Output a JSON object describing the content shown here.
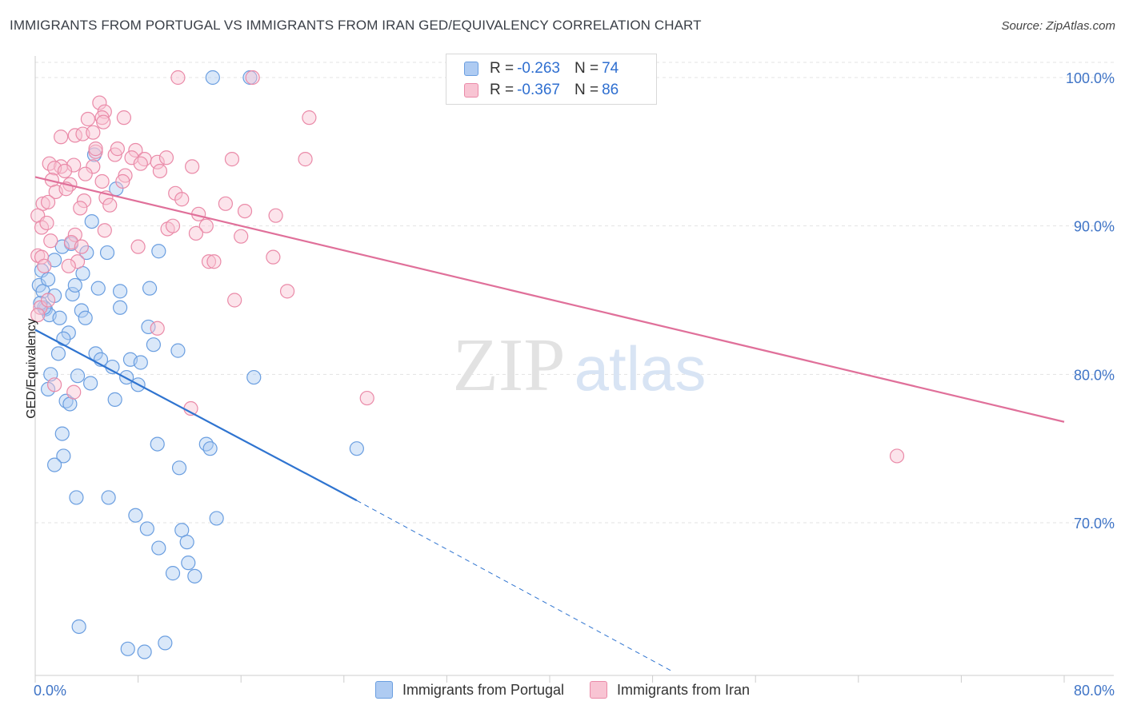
{
  "title": "IMMIGRANTS FROM PORTUGAL VS IMMIGRANTS FROM IRAN GED/EQUIVALENCY CORRELATION CHART",
  "source": "Source: ZipAtlas.com",
  "watermark": {
    "zip": "ZIP",
    "atlas": "atlas"
  },
  "stats": [
    {
      "r_label": "R =",
      "r_value": "-0.263",
      "n_label": "N =",
      "n_value": "74",
      "color": "#aecbf2",
      "border": "#6a9ee0"
    },
    {
      "r_label": "R =",
      "r_value": "-0.367",
      "n_label": "N =",
      "n_value": "86",
      "color": "#f8c4d3",
      "border": "#ea8aa8"
    }
  ],
  "legend": [
    {
      "label": "Immigrants from Portugal",
      "color": "#aecbf2",
      "border": "#6a9ee0"
    },
    {
      "label": "Immigrants from Iran",
      "color": "#f8c4d3",
      "border": "#ea8aa8"
    }
  ],
  "chart_data": {
    "type": "scatter",
    "xlabel": "",
    "ylabel": "GED/Equivalency",
    "xlim": [
      0,
      80
    ],
    "ylim": [
      60,
      101.5
    ],
    "x_tick_labels": [
      {
        "value": 0,
        "label": "0.0%"
      },
      {
        "value": 80,
        "label": "80.0%"
      }
    ],
    "y_tick_labels": [
      {
        "value": 100,
        "label": "100.0%"
      },
      {
        "value": 90,
        "label": "90.0%"
      },
      {
        "value": 80,
        "label": "80.0%"
      },
      {
        "value": 70,
        "label": "70.0%"
      }
    ],
    "grid": true,
    "series": [
      {
        "name": "Immigrants from Portugal",
        "color": "#6a9ee0",
        "fill": "rgba(174,203,242,0.45)",
        "trend_color": "#2f74d0",
        "trend": {
          "x0": 0,
          "y0": 83.0,
          "x1": 25.0,
          "y1": 71.5,
          "dash_to_x": 49.5,
          "dash_to_y": 60.0
        },
        "points": [
          [
            13.8,
            100.0
          ],
          [
            16.7,
            100.0
          ],
          [
            4.6,
            94.8
          ],
          [
            6.3,
            92.5
          ],
          [
            4.4,
            90.3
          ],
          [
            2.8,
            88.8
          ],
          [
            1.5,
            87.7
          ],
          [
            4.0,
            88.2
          ],
          [
            5.6,
            88.2
          ],
          [
            9.6,
            88.3
          ],
          [
            0.5,
            87.0
          ],
          [
            3.7,
            86.8
          ],
          [
            0.3,
            86.0
          ],
          [
            0.6,
            85.6
          ],
          [
            2.9,
            85.4
          ],
          [
            4.9,
            85.8
          ],
          [
            6.6,
            85.6
          ],
          [
            8.9,
            85.8
          ],
          [
            1.5,
            85.3
          ],
          [
            0.8,
            84.4
          ],
          [
            1.1,
            84.0
          ],
          [
            0.7,
            84.5
          ],
          [
            1.9,
            83.8
          ],
          [
            3.6,
            84.3
          ],
          [
            3.9,
            83.8
          ],
          [
            6.6,
            84.5
          ],
          [
            8.8,
            83.2
          ],
          [
            2.6,
            82.8
          ],
          [
            2.2,
            82.4
          ],
          [
            1.8,
            81.4
          ],
          [
            4.7,
            81.4
          ],
          [
            5.1,
            81.0
          ],
          [
            7.4,
            81.0
          ],
          [
            8.2,
            80.8
          ],
          [
            11.1,
            81.6
          ],
          [
            1.2,
            80.0
          ],
          [
            7.1,
            79.8
          ],
          [
            8.0,
            79.3
          ],
          [
            17.0,
            79.8
          ],
          [
            1.0,
            79.0
          ],
          [
            4.3,
            79.4
          ],
          [
            2.4,
            78.2
          ],
          [
            2.7,
            78.0
          ],
          [
            6.2,
            78.3
          ],
          [
            2.1,
            76.0
          ],
          [
            9.5,
            75.3
          ],
          [
            13.3,
            75.3
          ],
          [
            13.6,
            75.0
          ],
          [
            25.0,
            75.0
          ],
          [
            2.2,
            74.5
          ],
          [
            1.5,
            73.9
          ],
          [
            11.2,
            73.7
          ],
          [
            3.2,
            71.7
          ],
          [
            5.7,
            71.7
          ],
          [
            7.8,
            70.5
          ],
          [
            14.1,
            70.3
          ],
          [
            8.7,
            69.6
          ],
          [
            11.4,
            69.5
          ],
          [
            11.8,
            68.7
          ],
          [
            9.6,
            68.3
          ],
          [
            11.9,
            67.3
          ],
          [
            10.7,
            66.6
          ],
          [
            12.4,
            66.4
          ],
          [
            3.4,
            63.0
          ],
          [
            10.1,
            61.9
          ],
          [
            7.2,
            61.5
          ],
          [
            8.5,
            61.3
          ],
          [
            1.0,
            86.4
          ],
          [
            0.4,
            84.8
          ],
          [
            3.1,
            86.0
          ],
          [
            2.1,
            88.6
          ],
          [
            6.0,
            80.5
          ],
          [
            9.2,
            82.0
          ],
          [
            3.3,
            79.9
          ]
        ]
      },
      {
        "name": "Immigrants from Iran",
        "color": "#ea8aa8",
        "fill": "rgba(248,196,211,0.45)",
        "trend_color": "#e0709a",
        "trend": {
          "x0": 0,
          "y0": 93.3,
          "x1": 80,
          "y1": 76.8
        },
        "points": [
          [
            11.1,
            100.0
          ],
          [
            16.9,
            100.0
          ],
          [
            5.0,
            98.3
          ],
          [
            5.4,
            97.7
          ],
          [
            4.1,
            97.2
          ],
          [
            5.2,
            97.3
          ],
          [
            6.9,
            97.3
          ],
          [
            5.3,
            97.0
          ],
          [
            21.3,
            97.3
          ],
          [
            2.0,
            96.0
          ],
          [
            3.1,
            96.1
          ],
          [
            3.7,
            96.2
          ],
          [
            4.5,
            96.3
          ],
          [
            4.7,
            95.0
          ],
          [
            4.7,
            95.2
          ],
          [
            6.2,
            94.8
          ],
          [
            7.8,
            95.1
          ],
          [
            1.1,
            94.2
          ],
          [
            2.0,
            94.0
          ],
          [
            3.0,
            94.1
          ],
          [
            7.5,
            94.6
          ],
          [
            8.5,
            94.5
          ],
          [
            9.5,
            94.3
          ],
          [
            15.3,
            94.5
          ],
          [
            21.0,
            94.5
          ],
          [
            1.5,
            93.9
          ],
          [
            2.3,
            93.7
          ],
          [
            4.5,
            94.0
          ],
          [
            7.0,
            93.4
          ],
          [
            9.7,
            93.7
          ],
          [
            12.2,
            94.0
          ],
          [
            1.3,
            93.1
          ],
          [
            2.7,
            92.8
          ],
          [
            5.2,
            93.0
          ],
          [
            6.8,
            93.0
          ],
          [
            1.6,
            92.3
          ],
          [
            10.9,
            92.2
          ],
          [
            0.6,
            91.5
          ],
          [
            1.0,
            91.6
          ],
          [
            3.8,
            91.7
          ],
          [
            5.5,
            91.9
          ],
          [
            11.4,
            91.8
          ],
          [
            14.8,
            91.5
          ],
          [
            3.5,
            91.2
          ],
          [
            16.3,
            91.0
          ],
          [
            0.2,
            90.7
          ],
          [
            12.7,
            90.8
          ],
          [
            18.7,
            90.7
          ],
          [
            0.5,
            89.9
          ],
          [
            13.3,
            90.0
          ],
          [
            5.4,
            89.7
          ],
          [
            10.3,
            89.8
          ],
          [
            10.7,
            90.0
          ],
          [
            3.1,
            89.4
          ],
          [
            1.2,
            89.0
          ],
          [
            2.8,
            88.9
          ],
          [
            8.0,
            88.6
          ],
          [
            0.2,
            88.0
          ],
          [
            0.5,
            87.9
          ],
          [
            3.3,
            87.6
          ],
          [
            13.5,
            87.6
          ],
          [
            13.9,
            87.6
          ],
          [
            18.5,
            87.9
          ],
          [
            0.7,
            87.3
          ],
          [
            2.6,
            87.3
          ],
          [
            19.6,
            85.6
          ],
          [
            15.5,
            85.0
          ],
          [
            9.5,
            83.1
          ],
          [
            1.5,
            79.3
          ],
          [
            3.0,
            78.8
          ],
          [
            12.1,
            77.7
          ],
          [
            25.8,
            78.4
          ],
          [
            67.0,
            74.5
          ],
          [
            0.4,
            84.5
          ],
          [
            0.2,
            84.0
          ],
          [
            1.0,
            85.0
          ],
          [
            2.4,
            92.5
          ],
          [
            3.9,
            93.5
          ],
          [
            6.4,
            95.2
          ],
          [
            8.2,
            94.2
          ],
          [
            10.2,
            94.6
          ],
          [
            12.5,
            89.5
          ],
          [
            0.9,
            90.2
          ],
          [
            3.6,
            88.6
          ],
          [
            5.8,
            91.4
          ],
          [
            16.0,
            89.3
          ]
        ]
      }
    ]
  }
}
